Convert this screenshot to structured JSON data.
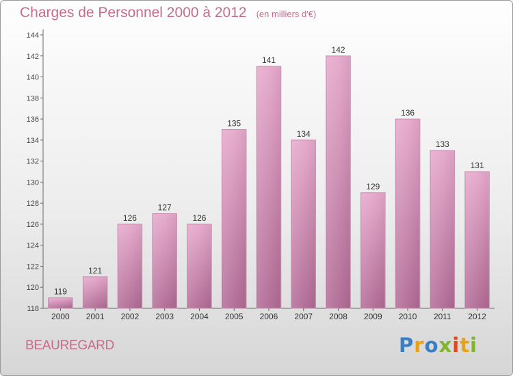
{
  "chart_data": {
    "type": "bar",
    "title": "Charges de Personnel 2000 à 2012",
    "subtitle": "(en milliers d'€)",
    "xlabel": "",
    "ylabel": "",
    "categories": [
      "2000",
      "2001",
      "2002",
      "2003",
      "2004",
      "2005",
      "2006",
      "2007",
      "2008",
      "2009",
      "2010",
      "2011",
      "2012"
    ],
    "values": [
      119,
      121,
      126,
      127,
      126,
      135,
      141,
      134,
      142,
      129,
      136,
      133,
      131
    ],
    "ylim": [
      118,
      144
    ],
    "yticks": [
      118,
      120,
      122,
      124,
      126,
      128,
      130,
      132,
      134,
      136,
      138,
      140,
      142,
      144
    ],
    "grid": false,
    "bar_color": "#d98cb3"
  },
  "footer": {
    "location": "BEAUREGARD",
    "brand_letters": [
      "P",
      "r",
      "o",
      "x",
      "i",
      "t",
      "i"
    ],
    "brand_colors": [
      "#3a7fc4",
      "#e8a21a",
      "#3a7fc4",
      "#7fb62e",
      "#e04a1a",
      "#e8a21a",
      "#7fb62e"
    ]
  }
}
